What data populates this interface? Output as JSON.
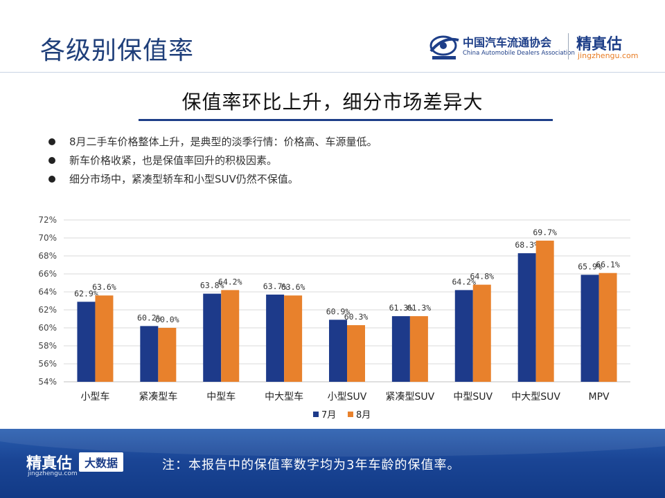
{
  "header": {
    "title": "各级别保值率",
    "cada_name_cn": "中国汽车流通协会",
    "cada_name_en": "China Automobile Dealers Association",
    "brand_cn": "精真估",
    "brand_url": "jingzhengu.com"
  },
  "subtitle": "保值率环比上升，细分市场差异大",
  "bullets": [
    "8月二手车价格整体上升，是典型的淡季行情：价格高、车源量低。",
    "新车价格收紧，也是保值率回升的积极因素。",
    "细分市场中，紧凑型轿车和小型SUV仍然不保值。"
  ],
  "chart_data": {
    "type": "bar",
    "categories": [
      "小型车",
      "紧凑型车",
      "中型车",
      "中大型车",
      "小型SUV",
      "紧凑型SUV",
      "中型SUV",
      "中大型SUV",
      "MPV"
    ],
    "series": [
      {
        "name": "7月",
        "color": "#1d3a8a",
        "values": [
          62.9,
          60.2,
          63.8,
          63.7,
          60.9,
          61.3,
          64.2,
          68.3,
          65.9
        ],
        "labels": [
          "62.9%",
          "60.2%",
          "63.8%",
          "63.7%",
          "60.9%",
          "61.3%",
          "64.2%",
          "68.3%",
          "65.9%"
        ]
      },
      {
        "name": "8月",
        "color": "#e8812c",
        "values": [
          63.6,
          60.0,
          64.2,
          63.6,
          60.3,
          61.3,
          64.8,
          69.7,
          66.1
        ],
        "labels": [
          "63.6%",
          "60.0%",
          "64.2%",
          "63.6%",
          "60.3%",
          "61.3%",
          "64.8%",
          "69.7%",
          "66.1%"
        ]
      }
    ],
    "ylim": [
      54,
      72
    ],
    "yticks": [
      "54%",
      "56%",
      "58%",
      "60%",
      "62%",
      "64%",
      "66%",
      "68%",
      "70%",
      "72%"
    ],
    "ytick_values": [
      54,
      56,
      58,
      60,
      62,
      64,
      66,
      68,
      70,
      72
    ],
    "grid": true,
    "legend": "bottom"
  },
  "footer": {
    "brand": "精真估",
    "url": "jingzhengu.com",
    "badge": "大数据",
    "note": "注：本报告中的保值率数字均为3年车龄的保值率。"
  }
}
